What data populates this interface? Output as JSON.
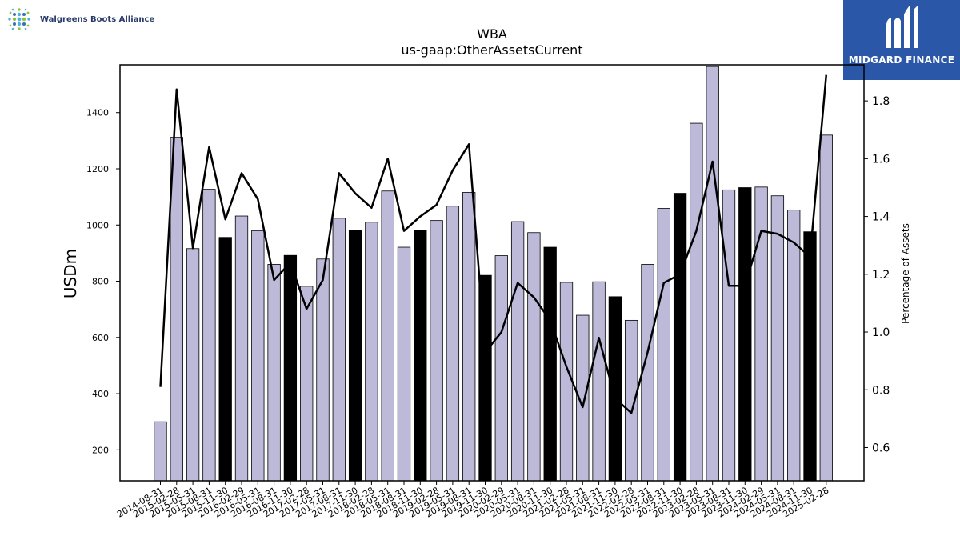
{
  "header": {
    "left_logo_text": "Walgreens Boots Alliance",
    "right_logo_text": "MIDGARD FINANCE"
  },
  "colors": {
    "bar_fill": "#bdbad9",
    "bar_highlight": "#000000",
    "line": "#000000",
    "brand_blue": "#2a57a8"
  },
  "chart_data": {
    "type": "bar",
    "title": "WBA",
    "subtitle": "us-gaap:OtherAssetsCurrent",
    "ylabel": "USDm",
    "y2label": "Percentage of Assets",
    "ylim": [
      90,
      1570
    ],
    "y2lim": [
      0.485,
      1.925
    ],
    "yticks": [
      200,
      400,
      600,
      800,
      1000,
      1200,
      1400
    ],
    "y2ticks": [
      0.6,
      0.8,
      1.0,
      1.2,
      1.4,
      1.6,
      1.8
    ],
    "grid": false,
    "legend": "none",
    "categories": [
      "2014-08-31",
      "2015-02-28",
      "2015-05-31",
      "2015-08-31",
      "2015-11-30",
      "2016-02-29",
      "2016-05-31",
      "2016-08-31",
      "2016-11-30",
      "2017-02-28",
      "2017-05-31",
      "2017-08-31",
      "2017-11-30",
      "2018-02-28",
      "2018-05-31",
      "2018-08-31",
      "2018-11-30",
      "2019-02-28",
      "2019-05-31",
      "2019-08-31",
      "2019-11-30",
      "2020-02-29",
      "2020-05-31",
      "2020-08-31",
      "2020-11-30",
      "2021-02-28",
      "2021-05-31",
      "2021-08-31",
      "2021-11-30",
      "2022-02-28",
      "2022-05-31",
      "2022-08-31",
      "2022-11-30",
      "2023-02-28",
      "2023-05-31",
      "2023-08-31",
      "2023-11-30",
      "2024-02-29",
      "2024-05-31",
      "2024-08-31",
      "2024-11-30",
      "2025-02-28"
    ],
    "series": [
      {
        "kind": "bar",
        "values": [
          300,
          1312,
          916,
          1127,
          956,
          1032,
          980,
          860,
          892,
          782,
          879,
          1024,
          981,
          1010,
          1121,
          921,
          981,
          1016,
          1067,
          1116,
          821,
          891,
          1012,
          973,
          921,
          796,
          679,
          798,
          745,
          661,
          860,
          1059,
          1113,
          1362,
          1564,
          1125,
          1133,
          1135,
          1104,
          1053,
          976,
          1320
        ],
        "highlight": [
          false,
          false,
          false,
          false,
          true,
          false,
          false,
          false,
          true,
          false,
          false,
          false,
          true,
          false,
          false,
          false,
          true,
          false,
          false,
          false,
          true,
          false,
          false,
          false,
          true,
          false,
          false,
          false,
          true,
          false,
          false,
          false,
          true,
          false,
          false,
          false,
          true,
          false,
          false,
          false,
          true,
          false
        ]
      },
      {
        "kind": "line",
        "axis": "right",
        "values": [
          0.81,
          1.84,
          1.29,
          1.64,
          1.39,
          1.55,
          1.46,
          1.18,
          1.24,
          1.08,
          1.18,
          1.55,
          1.48,
          1.43,
          1.6,
          1.35,
          1.4,
          1.44,
          1.56,
          1.65,
          0.93,
          1.0,
          1.17,
          1.12,
          1.04,
          0.88,
          0.74,
          0.98,
          0.77,
          0.72,
          0.93,
          1.17,
          1.2,
          1.35,
          1.59,
          1.16,
          1.16,
          1.35,
          1.34,
          1.31,
          1.26,
          1.89
        ]
      }
    ]
  }
}
